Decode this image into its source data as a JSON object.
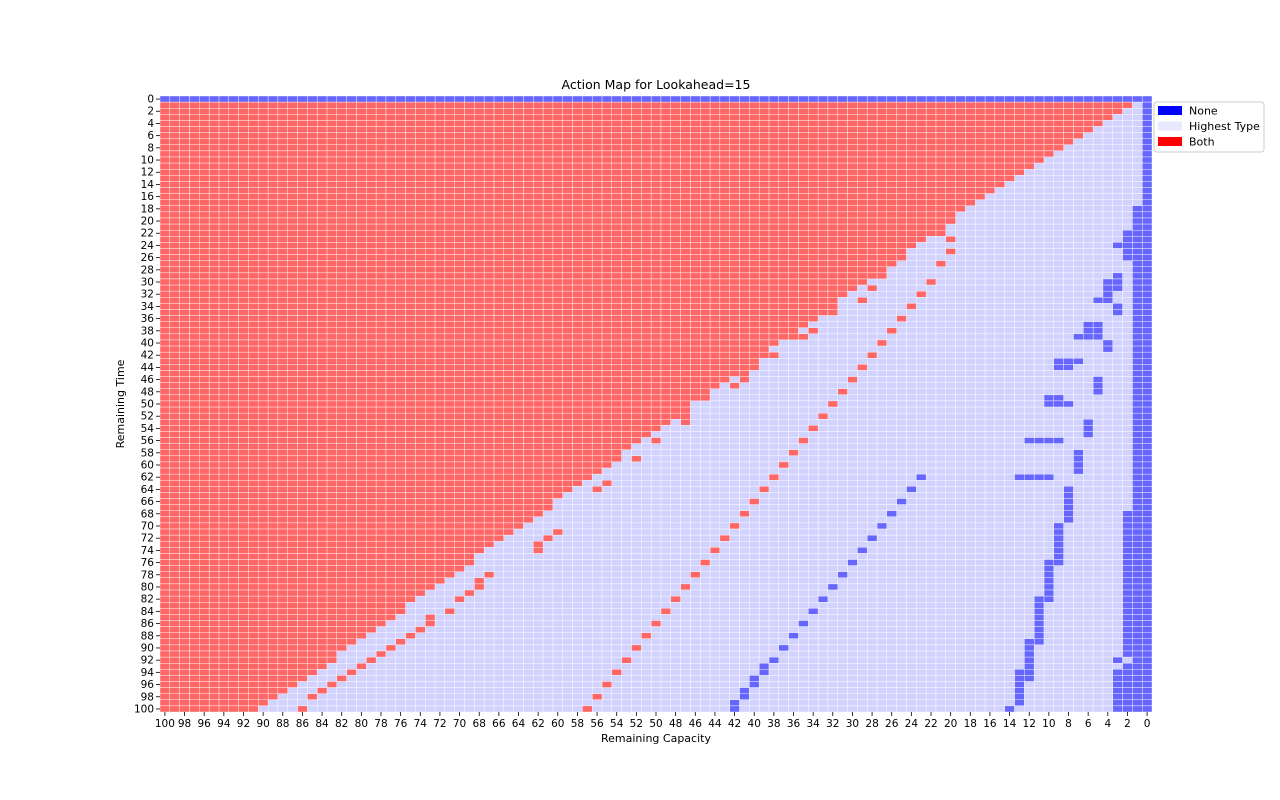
{
  "chart_data": {
    "type": "heatmap",
    "title": "Action Map for Lookahead=15",
    "xlabel": "Remaining Capacity",
    "ylabel": "Remaining Time",
    "x_range": [
      100,
      0
    ],
    "y_range": [
      0,
      100
    ],
    "x_tick_labels": [
      "100",
      "98",
      "96",
      "94",
      "92",
      "90",
      "88",
      "86",
      "84",
      "82",
      "80",
      "78",
      "76",
      "74",
      "72",
      "70",
      "68",
      "66",
      "64",
      "62",
      "60",
      "58",
      "56",
      "54",
      "52",
      "50",
      "48",
      "46",
      "44",
      "42",
      "40",
      "38",
      "36",
      "34",
      "32",
      "30",
      "28",
      "26",
      "24",
      "22",
      "20",
      "18",
      "16",
      "14",
      "12",
      "10",
      "8",
      "6",
      "4",
      "2",
      "0"
    ],
    "y_tick_labels": [
      "0",
      "2",
      "4",
      "6",
      "8",
      "10",
      "12",
      "14",
      "16",
      "18",
      "20",
      "22",
      "24",
      "26",
      "28",
      "30",
      "32",
      "34",
      "36",
      "38",
      "40",
      "42",
      "44",
      "46",
      "48",
      "50",
      "52",
      "54",
      "56",
      "58",
      "60",
      "62",
      "64",
      "66",
      "68",
      "70",
      "72",
      "74",
      "76",
      "78",
      "80",
      "82",
      "84",
      "86",
      "88",
      "90",
      "92",
      "94",
      "96",
      "98",
      "100"
    ],
    "categories": [
      "None",
      "Highest Type",
      "Both"
    ],
    "colors": {
      "None": "#6666ff",
      "Highest Type": "#d2d2ff",
      "Both": "#ff6666",
      "legend_None": "#0000ff",
      "legend_Highest Type": "#e8e8ff",
      "legend_Both": "#ff0000"
    },
    "grid_lines": true,
    "legend_position": "upper-right-outside",
    "structure": {
      "row_0": "None",
      "column_0": "None",
      "column_1_none_rows": [
        [
          18,
          100
        ]
      ],
      "column_2_none_rows": [
        [
          22,
          25
        ],
        [
          68,
          90
        ],
        [
          91,
          91
        ],
        [
          93,
          100
        ]
      ],
      "both_region": "Both where remaining capacity > remaining time (approximately), otherwise Highest Type",
      "red_diagonal_marks": [
        [
          21,
          22
        ],
        [
          20,
          23
        ],
        [
          20,
          25
        ],
        [
          21,
          27
        ],
        [
          22,
          30
        ],
        [
          23,
          32
        ],
        [
          24,
          34
        ],
        [
          25,
          36
        ],
        [
          26,
          38
        ],
        [
          27,
          40
        ],
        [
          28,
          42
        ],
        [
          29,
          44
        ],
        [
          30,
          46
        ],
        [
          31,
          48
        ],
        [
          32,
          50
        ],
        [
          33,
          52
        ],
        [
          34,
          54
        ],
        [
          35,
          56
        ],
        [
          36,
          58
        ],
        [
          37,
          60
        ],
        [
          38,
          62
        ],
        [
          39,
          64
        ],
        [
          40,
          66
        ],
        [
          41,
          68
        ],
        [
          42,
          70
        ],
        [
          43,
          72
        ],
        [
          44,
          74
        ],
        [
          45,
          76
        ],
        [
          46,
          78
        ],
        [
          47,
          80
        ],
        [
          48,
          82
        ],
        [
          49,
          84
        ],
        [
          50,
          86
        ],
        [
          51,
          88
        ],
        [
          52,
          90
        ],
        [
          53,
          92
        ],
        [
          54,
          94
        ],
        [
          55,
          96
        ],
        [
          56,
          98
        ],
        [
          57,
          100
        ],
        [
          26,
          26
        ],
        [
          28,
          31
        ],
        [
          32,
          35
        ],
        [
          36,
          39
        ],
        [
          40,
          43
        ],
        [
          44,
          47
        ],
        [
          48,
          51
        ],
        [
          52,
          55
        ],
        [
          56,
          59
        ],
        [
          60,
          63
        ],
        [
          64,
          67
        ],
        [
          68,
          71
        ],
        [
          72,
          75
        ],
        [
          76,
          79
        ],
        [
          80,
          83
        ],
        [
          84,
          87
        ],
        [
          86,
          100
        ],
        [
          85,
          98
        ],
        [
          84,
          97
        ],
        [
          83,
          96
        ],
        [
          82,
          95
        ],
        [
          81,
          94
        ],
        [
          80,
          93
        ],
        [
          79,
          92
        ],
        [
          78,
          91
        ],
        [
          77,
          90
        ],
        [
          76,
          89
        ],
        [
          75,
          88
        ],
        [
          74,
          87
        ],
        [
          73,
          86
        ],
        [
          73,
          85
        ],
        [
          71,
          84
        ],
        [
          70,
          82
        ],
        [
          69,
          81
        ],
        [
          68,
          80
        ],
        [
          68,
          79
        ],
        [
          67,
          78
        ],
        [
          62,
          74
        ],
        [
          62,
          73
        ],
        [
          61,
          72
        ],
        [
          60,
          71
        ],
        [
          56,
          64
        ],
        [
          55,
          63
        ],
        [
          52,
          59
        ],
        [
          50,
          56
        ],
        [
          47,
          53
        ],
        [
          47,
          52
        ],
        [
          45,
          49
        ],
        [
          42,
          47
        ],
        [
          41,
          46
        ],
        [
          41,
          45
        ],
        [
          40,
          44
        ],
        [
          38,
          42
        ],
        [
          35,
          39
        ],
        [
          34,
          38
        ],
        [
          29,
          33
        ],
        [
          27,
          29
        ]
      ],
      "blue_marks": [
        [
          23,
          62
        ],
        [
          24,
          64
        ],
        [
          25,
          66
        ],
        [
          26,
          68
        ],
        [
          27,
          70
        ],
        [
          28,
          72
        ],
        [
          29,
          74
        ],
        [
          30,
          76
        ],
        [
          31,
          78
        ],
        [
          32,
          80
        ],
        [
          33,
          82
        ],
        [
          34,
          84
        ],
        [
          35,
          86
        ],
        [
          36,
          88
        ],
        [
          37,
          90
        ],
        [
          38,
          92
        ],
        [
          39,
          94
        ],
        [
          40,
          96
        ],
        [
          41,
          98
        ],
        [
          42,
          100
        ],
        [
          39,
          93
        ],
        [
          40,
          95
        ],
        [
          41,
          97
        ],
        [
          42,
          99
        ],
        [
          14,
          100
        ],
        [
          13,
          99
        ],
        [
          13,
          98
        ],
        [
          13,
          97
        ],
        [
          13,
          96
        ],
        [
          13,
          95
        ],
        [
          13,
          94
        ],
        [
          12,
          95
        ],
        [
          12,
          94
        ],
        [
          12,
          93
        ],
        [
          12,
          92
        ],
        [
          12,
          91
        ],
        [
          12,
          90
        ],
        [
          12,
          89
        ],
        [
          11,
          89
        ],
        [
          11,
          88
        ],
        [
          11,
          87
        ],
        [
          11,
          86
        ],
        [
          11,
          85
        ],
        [
          11,
          84
        ],
        [
          11,
          83
        ],
        [
          11,
          82
        ],
        [
          10,
          82
        ],
        [
          10,
          81
        ],
        [
          10,
          80
        ],
        [
          10,
          79
        ],
        [
          10,
          78
        ],
        [
          10,
          77
        ],
        [
          10,
          76
        ],
        [
          9,
          76
        ],
        [
          9,
          75
        ],
        [
          9,
          74
        ],
        [
          9,
          73
        ],
        [
          9,
          72
        ],
        [
          9,
          71
        ],
        [
          9,
          70
        ],
        [
          8,
          69
        ],
        [
          8,
          68
        ],
        [
          8,
          67
        ],
        [
          8,
          66
        ],
        [
          8,
          65
        ],
        [
          8,
          64
        ],
        [
          13,
          62
        ],
        [
          12,
          62
        ],
        [
          11,
          62
        ],
        [
          10,
          62
        ],
        [
          7,
          61
        ],
        [
          7,
          60
        ],
        [
          7,
          59
        ],
        [
          7,
          58
        ],
        [
          12,
          56
        ],
        [
          11,
          56
        ],
        [
          10,
          56
        ],
        [
          9,
          56
        ],
        [
          6,
          55
        ],
        [
          6,
          54
        ],
        [
          6,
          53
        ],
        [
          10,
          50
        ],
        [
          9,
          50
        ],
        [
          8,
          50
        ],
        [
          10,
          49
        ],
        [
          9,
          49
        ],
        [
          5,
          48
        ],
        [
          5,
          47
        ],
        [
          5,
          46
        ],
        [
          9,
          44
        ],
        [
          8,
          44
        ],
        [
          9,
          43
        ],
        [
          8,
          43
        ],
        [
          7,
          43
        ],
        [
          4,
          41
        ],
        [
          4,
          40
        ],
        [
          7,
          39
        ],
        [
          6,
          39
        ],
        [
          5,
          39
        ],
        [
          6,
          38
        ],
        [
          5,
          38
        ],
        [
          6,
          37
        ],
        [
          5,
          37
        ],
        [
          3,
          35
        ],
        [
          3,
          34
        ],
        [
          5,
          33
        ],
        [
          4,
          33
        ],
        [
          4,
          32
        ],
        [
          4,
          31
        ],
        [
          3,
          31
        ],
        [
          4,
          30
        ],
        [
          3,
          30
        ],
        [
          3,
          29
        ],
        [
          2,
          26
        ],
        [
          2,
          25
        ],
        [
          3,
          24
        ],
        [
          2,
          24
        ],
        [
          2,
          23
        ],
        [
          3,
          100
        ],
        [
          3,
          99
        ],
        [
          3,
          98
        ],
        [
          3,
          97
        ],
        [
          3,
          96
        ],
        [
          3,
          95
        ],
        [
          3,
          94
        ],
        [
          3,
          92
        ]
      ]
    }
  }
}
